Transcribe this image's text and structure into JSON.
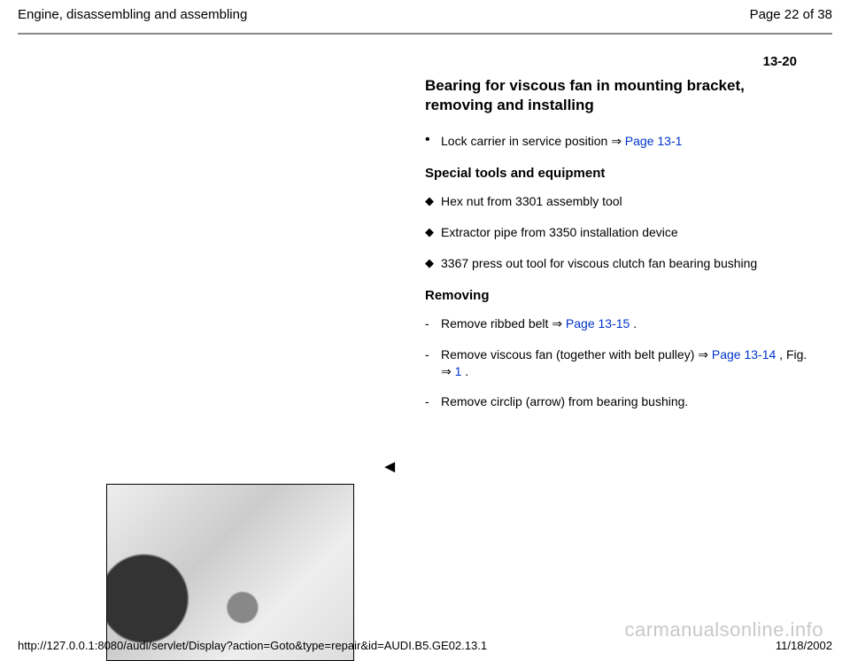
{
  "header": {
    "title": "Engine, disassembling and assembling",
    "page_label": "Page 22 of 38"
  },
  "section_number": "13-20",
  "main_heading": "Bearing for viscous fan in mounting bracket, removing and installing",
  "intro_bullet": {
    "text_before": "Lock carrier in service position ",
    "arrow": "⇒",
    "link": " Page 13-1"
  },
  "tools_heading": "Special tools and equipment",
  "tools": [
    "Hex nut from 3301 assembly tool",
    "Extractor pipe from 3350 installation device",
    "3367 press out tool for viscous clutch fan bearing bushing"
  ],
  "removing_heading": "Removing",
  "steps": [
    {
      "parts": [
        {
          "t": "Remove ribbed belt "
        },
        {
          "t": "⇒"
        },
        {
          "t": " Page 13-15",
          "link": true
        },
        {
          "t": " ."
        }
      ]
    },
    {
      "parts": [
        {
          "t": "Remove viscous fan (together with belt pulley) "
        },
        {
          "t": "⇒"
        },
        {
          "t": " Page 13-14",
          "link": true
        },
        {
          "t": " , Fig. "
        },
        {
          "t": "⇒"
        },
        {
          "t": " 1",
          "link": true
        },
        {
          "t": " ."
        }
      ]
    },
    {
      "parts": [
        {
          "t": "Remove circlip (arrow) from bearing bushing."
        }
      ]
    }
  ],
  "footer": {
    "url": "http://127.0.0.1:8080/audi/servlet/Display?action=Goto&type=repair&id=AUDI.B5.GE02.13.1",
    "date": "11/18/2002"
  },
  "watermark": "carmanualsonline.info",
  "arrow_indicator": "◄"
}
